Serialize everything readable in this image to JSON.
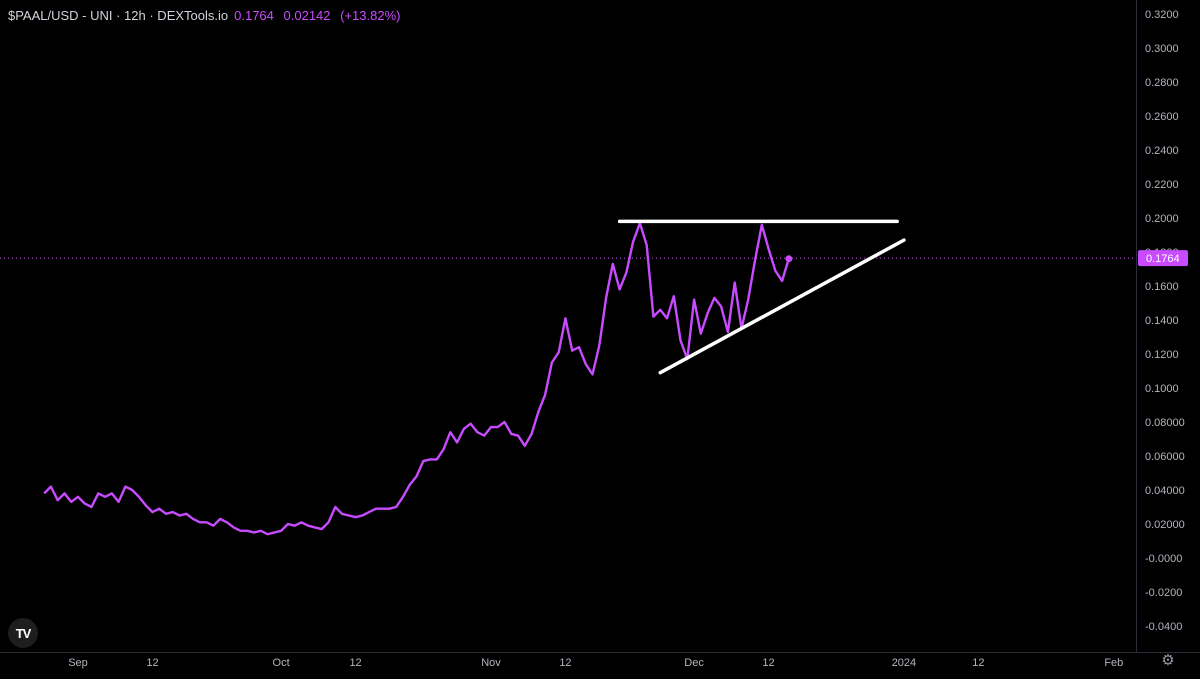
{
  "header": {
    "symbol": "$PAAL/USD - UNI · 12h · DEXTools.io",
    "last": "0.1764",
    "change": "0.02142",
    "change_pct": "(+13.82%)"
  },
  "price_label": "0.1764",
  "colors": {
    "line": "#c94bff",
    "background": "#000000",
    "axis_text": "#b2b5be",
    "pattern_lines": "#ffffff",
    "price_tag": "#c94bff"
  },
  "icons": {
    "logo": "tradingview-logo-icon",
    "settings": "gear-icon"
  },
  "logo_text": "TV",
  "chart_data": {
    "type": "line",
    "title": "$PAAL/USD - UNI · 12h · DEXTools.io",
    "xlabel": "",
    "ylabel": "",
    "ylim": [
      -0.05,
      0.325
    ],
    "grid": false,
    "y_ticks": [
      "0.3200",
      "0.3000",
      "0.2800",
      "0.2600",
      "0.2400",
      "0.2200",
      "0.2000",
      "0.1800",
      "0.1600",
      "0.1400",
      "0.1200",
      "0.1000",
      "0.08000",
      "0.06000",
      "0.04000",
      "0.02000",
      "-0.0000",
      "-0.0200",
      "-0.0400"
    ],
    "y_tick_values": [
      0.32,
      0.3,
      0.28,
      0.26,
      0.24,
      0.22,
      0.2,
      0.18,
      0.16,
      0.14,
      0.12,
      0.1,
      0.08,
      0.06,
      0.04,
      0.02,
      0.0,
      -0.02,
      -0.04
    ],
    "x_ticks": [
      {
        "label": "Sep",
        "date": "2023-09-01"
      },
      {
        "label": "12",
        "date": "2023-09-12"
      },
      {
        "label": "Oct",
        "date": "2023-10-01"
      },
      {
        "label": "12",
        "date": "2023-10-12"
      },
      {
        "label": "Nov",
        "date": "2023-11-01"
      },
      {
        "label": "12",
        "date": "2023-11-12"
      },
      {
        "label": "Dec",
        "date": "2023-12-01"
      },
      {
        "label": "12",
        "date": "2023-12-12"
      },
      {
        "label": "2024",
        "date": "2024-01-01"
      },
      {
        "label": "12",
        "date": "2024-01-12"
      },
      {
        "label": "Feb",
        "date": "2024-02-01"
      }
    ],
    "series": [
      {
        "points": [
          [
            "2023-08-27",
            0.038
          ],
          [
            "2023-08-28",
            0.042
          ],
          [
            "2023-08-29",
            0.034
          ],
          [
            "2023-08-30",
            0.038
          ],
          [
            "2023-08-31",
            0.033
          ],
          [
            "2023-09-01",
            0.036
          ],
          [
            "2023-09-02",
            0.032
          ],
          [
            "2023-09-03",
            0.03
          ],
          [
            "2023-09-04",
            0.038
          ],
          [
            "2023-09-05",
            0.036
          ],
          [
            "2023-09-06",
            0.038
          ],
          [
            "2023-09-07",
            0.033
          ],
          [
            "2023-09-08",
            0.042
          ],
          [
            "2023-09-09",
            0.04
          ],
          [
            "2023-09-10",
            0.036
          ],
          [
            "2023-09-11",
            0.031
          ],
          [
            "2023-09-12",
            0.027
          ],
          [
            "2023-09-13",
            0.029
          ],
          [
            "2023-09-14",
            0.026
          ],
          [
            "2023-09-15",
            0.027
          ],
          [
            "2023-09-16",
            0.025
          ],
          [
            "2023-09-17",
            0.026
          ],
          [
            "2023-09-18",
            0.023
          ],
          [
            "2023-09-19",
            0.021
          ],
          [
            "2023-09-20",
            0.021
          ],
          [
            "2023-09-21",
            0.019
          ],
          [
            "2023-09-22",
            0.023
          ],
          [
            "2023-09-23",
            0.021
          ],
          [
            "2023-09-24",
            0.018
          ],
          [
            "2023-09-25",
            0.016
          ],
          [
            "2023-09-26",
            0.016
          ],
          [
            "2023-09-27",
            0.015
          ],
          [
            "2023-09-28",
            0.016
          ],
          [
            "2023-09-29",
            0.014
          ],
          [
            "2023-09-30",
            0.015
          ],
          [
            "2023-10-01",
            0.016
          ],
          [
            "2023-10-02",
            0.02
          ],
          [
            "2023-10-03",
            0.019
          ],
          [
            "2023-10-04",
            0.021
          ],
          [
            "2023-10-05",
            0.019
          ],
          [
            "2023-10-06",
            0.018
          ],
          [
            "2023-10-07",
            0.017
          ],
          [
            "2023-10-08",
            0.021
          ],
          [
            "2023-10-09",
            0.03
          ],
          [
            "2023-10-10",
            0.026
          ],
          [
            "2023-10-11",
            0.025
          ],
          [
            "2023-10-12",
            0.024
          ],
          [
            "2023-10-13",
            0.025
          ],
          [
            "2023-10-14",
            0.027
          ],
          [
            "2023-10-15",
            0.029
          ],
          [
            "2023-10-16",
            0.029
          ],
          [
            "2023-10-17",
            0.029
          ],
          [
            "2023-10-18",
            0.03
          ],
          [
            "2023-10-19",
            0.036
          ],
          [
            "2023-10-20",
            0.043
          ],
          [
            "2023-10-21",
            0.048
          ],
          [
            "2023-10-22",
            0.057
          ],
          [
            "2023-10-23",
            0.058
          ],
          [
            "2023-10-24",
            0.058
          ],
          [
            "2023-10-25",
            0.064
          ],
          [
            "2023-10-26",
            0.074
          ],
          [
            "2023-10-27",
            0.068
          ],
          [
            "2023-10-28",
            0.076
          ],
          [
            "2023-10-29",
            0.079
          ],
          [
            "2023-10-30",
            0.074
          ],
          [
            "2023-10-31",
            0.072
          ],
          [
            "2023-11-01",
            0.077
          ],
          [
            "2023-11-02",
            0.077
          ],
          [
            "2023-11-03",
            0.08
          ],
          [
            "2023-11-04",
            0.073
          ],
          [
            "2023-11-05",
            0.072
          ],
          [
            "2023-11-06",
            0.066
          ],
          [
            "2023-11-07",
            0.073
          ],
          [
            "2023-11-08",
            0.086
          ],
          [
            "2023-11-09",
            0.096
          ],
          [
            "2023-11-10",
            0.115
          ],
          [
            "2023-11-11",
            0.121
          ],
          [
            "2023-11-12",
            0.141
          ],
          [
            "2023-11-13",
            0.122
          ],
          [
            "2023-11-14",
            0.124
          ],
          [
            "2023-11-15",
            0.114
          ],
          [
            "2023-11-16",
            0.108
          ],
          [
            "2023-11-17",
            0.125
          ],
          [
            "2023-11-18",
            0.153
          ],
          [
            "2023-11-19",
            0.173
          ],
          [
            "2023-11-20",
            0.158
          ],
          [
            "2023-11-21",
            0.168
          ],
          [
            "2023-11-22",
            0.186
          ],
          [
            "2023-11-23",
            0.197
          ],
          [
            "2023-11-24",
            0.184
          ],
          [
            "2023-11-25",
            0.142
          ],
          [
            "2023-11-26",
            0.146
          ],
          [
            "2023-11-27",
            0.141
          ],
          [
            "2023-11-28",
            0.154
          ],
          [
            "2023-11-29",
            0.128
          ],
          [
            "2023-11-30",
            0.117
          ],
          [
            "2023-12-01",
            0.152
          ],
          [
            "2023-12-02",
            0.132
          ],
          [
            "2023-12-03",
            0.144
          ],
          [
            "2023-12-04",
            0.153
          ],
          [
            "2023-12-05",
            0.148
          ],
          [
            "2023-12-06",
            0.133
          ],
          [
            "2023-12-07",
            0.162
          ],
          [
            "2023-12-08",
            0.135
          ],
          [
            "2023-12-09",
            0.152
          ],
          [
            "2023-12-10",
            0.175
          ],
          [
            "2023-12-11",
            0.196
          ],
          [
            "2023-12-12",
            0.182
          ],
          [
            "2023-12-13",
            0.169
          ],
          [
            "2023-12-14",
            0.163
          ],
          [
            "2023-12-15",
            0.176
          ]
        ]
      }
    ],
    "annotations": [
      {
        "type": "horizontal-resistance",
        "from": [
          "2023-11-20",
          0.198
        ],
        "to": [
          "2023-12-31",
          0.198
        ]
      },
      {
        "type": "ascending-support",
        "from": [
          "2023-11-26",
          0.109
        ],
        "to": [
          "2024-01-01",
          0.187
        ]
      }
    ]
  }
}
